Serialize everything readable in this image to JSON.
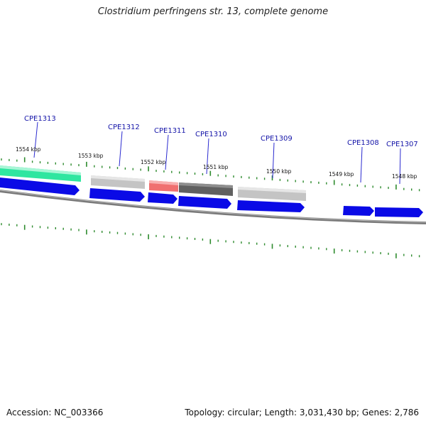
{
  "title": "Clostridium perfringens str. 13, complete genome",
  "footer": {
    "accession": "Accession: NC_003366",
    "summary": "Topology: circular; Length: 3,031,430 bp; Genes: 2,786"
  },
  "gene_labels": [
    "CPE1313",
    "CPE1312",
    "CPE1311",
    "CPE1310",
    "CPE1309",
    "CPE1308",
    "CPE1307"
  ],
  "kbp_labels": [
    "1554 kbp",
    "1553 kbp",
    "1552 kbp",
    "1551 kbp",
    "1550 kbp",
    "1549 kbp",
    "1548 kbp"
  ],
  "colors": {
    "gene_label": "#1414a8",
    "cds": "#0a0ae6",
    "backbone": "#8a8a8a",
    "tick": "#2e8b2e",
    "feature_teal": "#2fe6a0",
    "feature_light_gray": "#c4c4c4",
    "feature_red": "#f07070",
    "feature_dark_gray": "#606060"
  }
}
